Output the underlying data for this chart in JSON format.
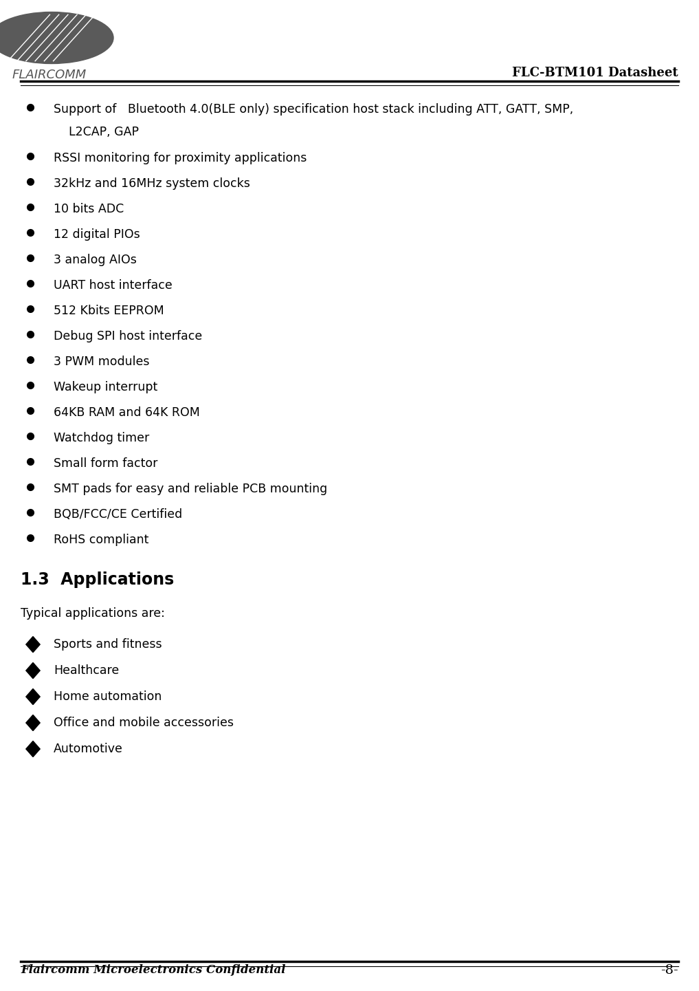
{
  "page_width": 10.17,
  "page_height": 14.41,
  "bg_color": "#ffffff",
  "header_title": "FLC-BTM101 Datasheet",
  "footer_left": "Flaircomm Microelectronics Confidential",
  "footer_right": "-8-",
  "section_heading": "1.3  Applications",
  "typical_text": "Typical applications are:",
  "bullet_line1": "Support of   Bluetooth 4.0(BLE only) specification host stack including ATT, GATT, SMP,",
  "bullet_line2": "    L2CAP, GAP",
  "bullet_items": [
    "RSSI monitoring for proximity applications",
    "32kHz and 16MHz system clocks",
    "10 bits ADC",
    "12 digital PIOs",
    "3 analog AIOs",
    "UART host interface",
    "512 Kbits EEPROM",
    "Debug SPI host interface",
    "3 PWM modules",
    "Wakeup interrupt",
    "64KB RAM and 64K ROM",
    "Watchdog timer",
    "Small form factor",
    "SMT pads for easy and reliable PCB mounting",
    "BQB/FCC/CE Certified",
    "RoHS compliant"
  ],
  "diamond_items": [
    "Sports and fitness",
    "Healthcare",
    "Home automation",
    "Office and mobile accessories",
    "Automotive"
  ],
  "text_color": "#000000",
  "font_size_body": 12.5,
  "font_size_heading": 17,
  "font_size_header": 13,
  "font_size_footer": 12
}
